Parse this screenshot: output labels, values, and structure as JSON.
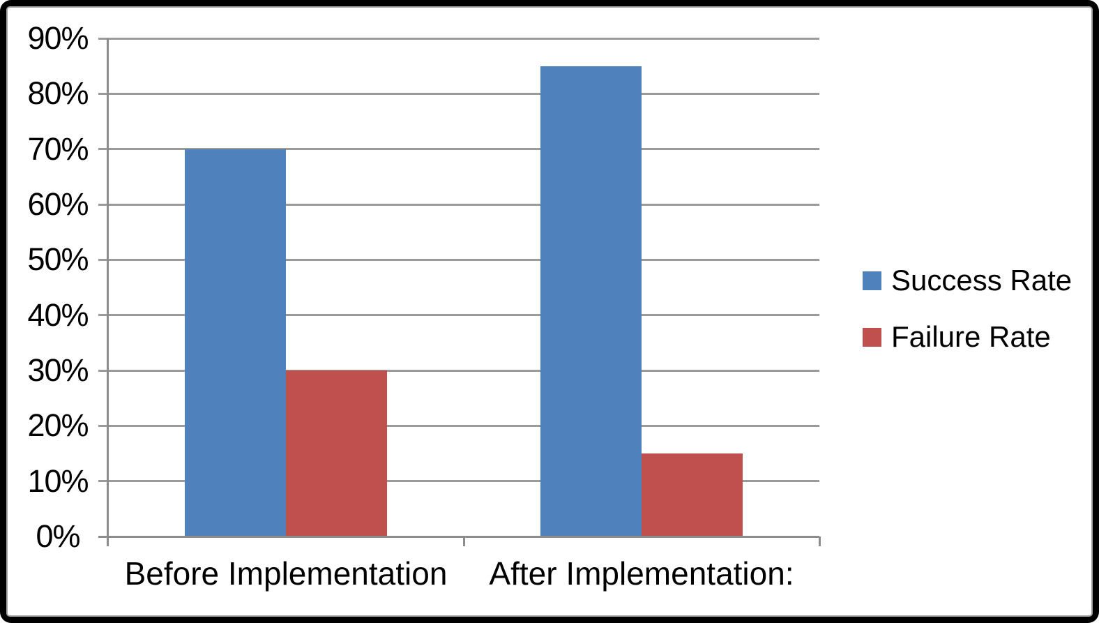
{
  "chart_data": {
    "type": "bar",
    "title": "",
    "xlabel": "",
    "ylabel": "",
    "categories": [
      "Before Implementation",
      "After Implementation:"
    ],
    "series": [
      {
        "name": "Success Rate",
        "color": "#4F81BD",
        "values": [
          70,
          85
        ]
      },
      {
        "name": "Failure Rate",
        "color": "#C0504D",
        "values": [
          30,
          15
        ]
      }
    ],
    "ylim": [
      0,
      90
    ],
    "ytick_step": 10,
    "ytick_labels": [
      "0%",
      "10%",
      "20%",
      "30%",
      "40%",
      "50%",
      "60%",
      "70%",
      "80%",
      "90%"
    ],
    "grid": true,
    "legend_position": "right"
  },
  "style": {
    "grid_color": "#9A9A9A",
    "axis_color": "#8C8C8C",
    "text_color": "#000000",
    "frame_color": "#000000",
    "plot_background": "#FFFFFF"
  }
}
